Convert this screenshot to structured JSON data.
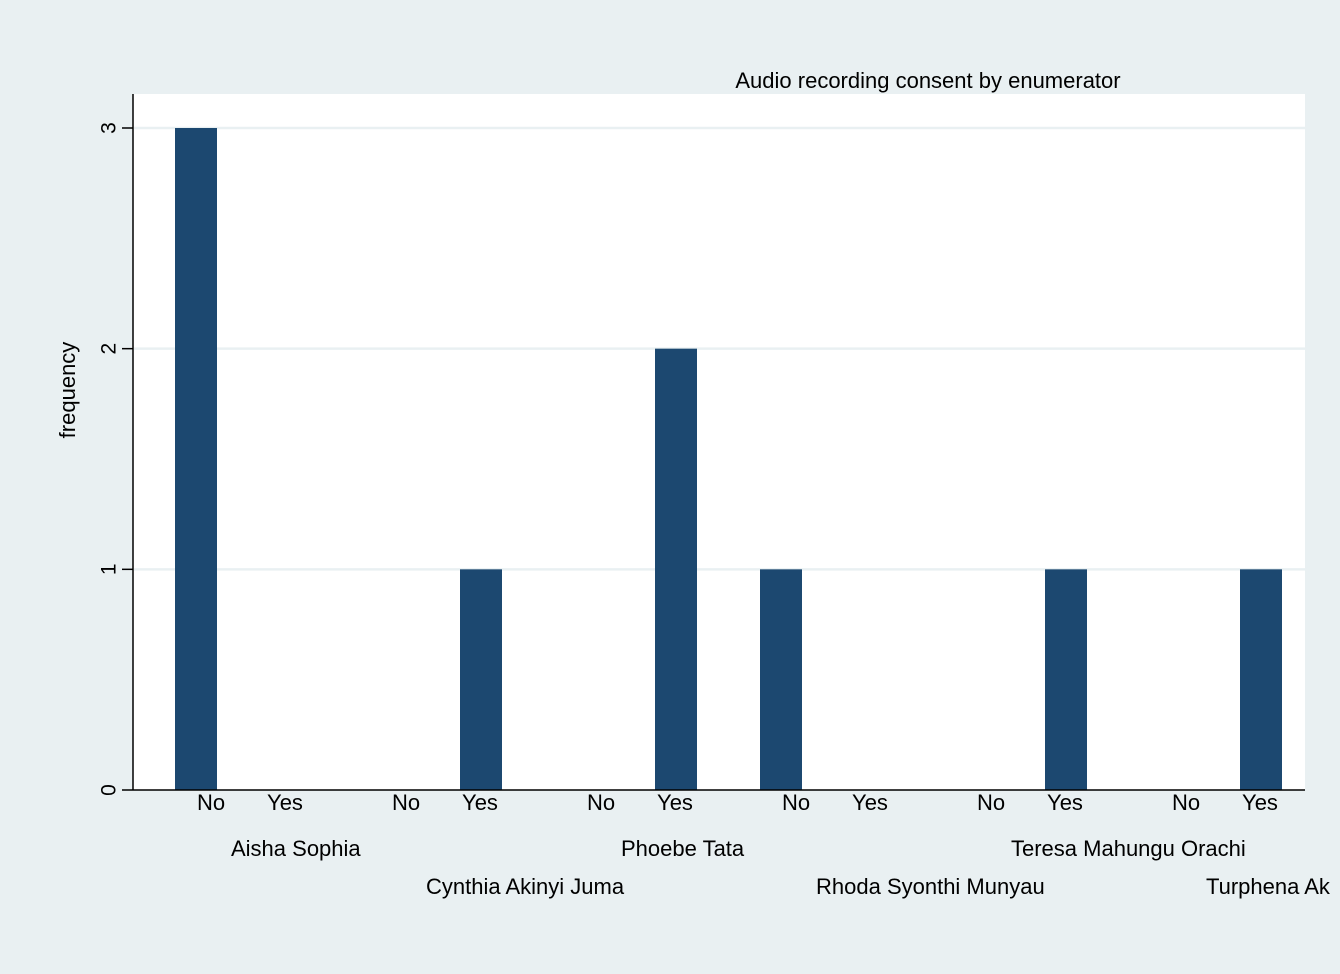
{
  "chart_data": {
    "type": "bar",
    "title": "Audio recording consent by enumerator",
    "xlabel": "",
    "ylabel": "frequency",
    "ylim": [
      0,
      3
    ],
    "yticks": [
      0,
      1,
      2,
      3
    ],
    "grid": true,
    "legend": "none",
    "bar_color": "#1c4870",
    "background_color": "#e9f0f2",
    "plot_background_color": "#ffffff",
    "groups": [
      {
        "name": "Aisha Sophia",
        "categories": [
          "No",
          "Yes"
        ],
        "values": [
          3,
          0
        ]
      },
      {
        "name": "Cynthia Akinyi Juma",
        "categories": [
          "No",
          "Yes"
        ],
        "values": [
          0,
          1
        ]
      },
      {
        "name": "Phoebe Tata",
        "categories": [
          "No",
          "Yes"
        ],
        "values": [
          0,
          2
        ]
      },
      {
        "name": "Rhoda Syonthi Munyau",
        "categories": [
          "No",
          "Yes"
        ],
        "values": [
          1,
          0
        ]
      },
      {
        "name": "Teresa Mahungu Orachi",
        "categories": [
          "No",
          "Yes"
        ],
        "values": [
          0,
          1
        ]
      },
      {
        "name": "Turphena Ak",
        "categories": [
          "No",
          "Yes"
        ],
        "values": [
          0,
          1
        ]
      }
    ]
  }
}
